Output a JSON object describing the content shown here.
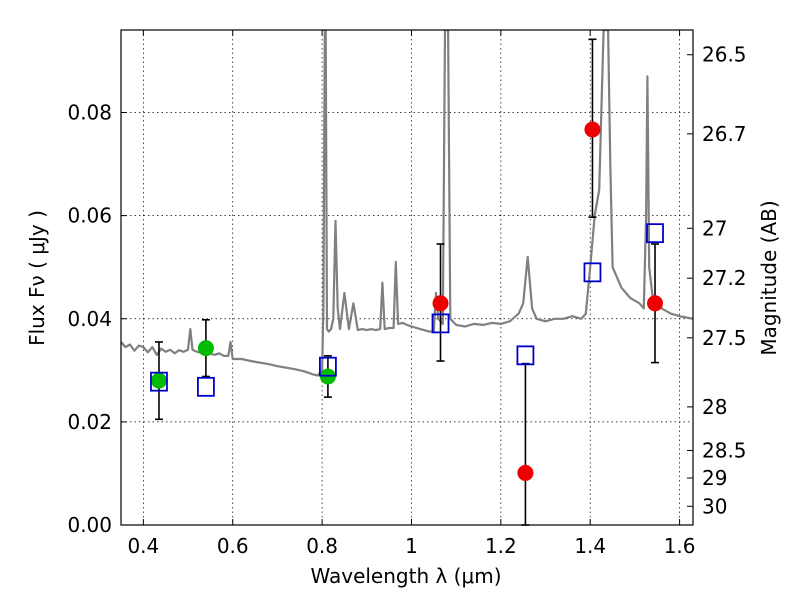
{
  "chart_data": {
    "type": "scatter",
    "xlabel": "Wavelength  λ (μm)",
    "ylabel": "Flux  Fν  ( μJy )",
    "ylabel_right": "Magnitude (AB)",
    "xlim": [
      0.35,
      1.63
    ],
    "ylim": [
      0.0,
      0.096
    ],
    "grid": true,
    "x_ticks": [
      {
        "value": 0.4,
        "label": "0.4"
      },
      {
        "value": 0.6,
        "label": "0.6"
      },
      {
        "value": 0.8,
        "label": "0.8"
      },
      {
        "value": 1.0,
        "label": "1"
      },
      {
        "value": 1.2,
        "label": "1.2"
      },
      {
        "value": 1.4,
        "label": "1.4"
      },
      {
        "value": 1.6,
        "label": "1.6"
      }
    ],
    "y_ticks": [
      {
        "value": 0.0,
        "label": "0.00"
      },
      {
        "value": 0.02,
        "label": "0.02"
      },
      {
        "value": 0.04,
        "label": "0.04"
      },
      {
        "value": 0.06,
        "label": "0.06"
      },
      {
        "value": 0.08,
        "label": "0.08"
      }
    ],
    "mag_ticks": [
      {
        "value": 26.5,
        "label": "26.5"
      },
      {
        "value": 26.7,
        "label": "26.7"
      },
      {
        "value": 27.0,
        "label": "27"
      },
      {
        "value": 27.2,
        "label": "27.2"
      },
      {
        "value": 27.5,
        "label": "27.5"
      },
      {
        "value": 28.0,
        "label": "28"
      },
      {
        "value": 28.5,
        "label": "28.5"
      },
      {
        "value": 29.0,
        "label": "29"
      },
      {
        "value": 30.0,
        "label": "30"
      }
    ],
    "colors": {
      "spectrum": "#808080",
      "green": "#00bb00",
      "red": "#ee0000",
      "model_box": "#0000cc",
      "errorbar": "#000000"
    },
    "series": [
      {
        "marker": "green-circle",
        "points": [
          {
            "x": 0.435,
            "y": 0.028,
            "err_lo": 0.0075,
            "err_hi": 0.0075
          },
          {
            "x": 0.54,
            "y": 0.0343,
            "err_lo": 0.0055,
            "err_hi": 0.0055
          },
          {
            "x": 0.813,
            "y": 0.0288,
            "err_lo": 0.004,
            "err_hi": 0.004
          }
        ]
      },
      {
        "marker": "red-circle",
        "points": [
          {
            "x": 1.065,
            "y": 0.043,
            "err_lo": 0.0112,
            "err_hi": 0.0115
          },
          {
            "x": 1.255,
            "y": 0.0101,
            "err_lo": 0.0101,
            "err_hi": 0.0212
          },
          {
            "x": 1.405,
            "y": 0.0767,
            "err_lo": 0.017,
            "err_hi": 0.0175
          },
          {
            "x": 1.545,
            "y": 0.043,
            "err_lo": 0.0115,
            "err_hi": 0.0115
          }
        ]
      },
      {
        "marker": "blue-open-square",
        "points": [
          {
            "x": 0.435,
            "y": 0.0278
          },
          {
            "x": 0.54,
            "y": 0.0268
          },
          {
            "x": 0.813,
            "y": 0.0307
          },
          {
            "x": 1.065,
            "y": 0.0391
          },
          {
            "x": 1.255,
            "y": 0.0329
          },
          {
            "x": 1.405,
            "y": 0.049
          },
          {
            "x": 1.545,
            "y": 0.0566
          }
        ]
      },
      {
        "marker": "gray-line",
        "points": [
          [
            0.35,
            0.0355
          ],
          [
            0.36,
            0.0345
          ],
          [
            0.37,
            0.035
          ],
          [
            0.38,
            0.0338
          ],
          [
            0.39,
            0.0348
          ],
          [
            0.4,
            0.0345
          ],
          [
            0.41,
            0.0335
          ],
          [
            0.42,
            0.0345
          ],
          [
            0.43,
            0.033
          ],
          [
            0.44,
            0.0342
          ],
          [
            0.45,
            0.0336
          ],
          [
            0.46,
            0.034
          ],
          [
            0.47,
            0.0333
          ],
          [
            0.48,
            0.0339
          ],
          [
            0.49,
            0.0336
          ],
          [
            0.5,
            0.034
          ],
          [
            0.505,
            0.038
          ],
          [
            0.51,
            0.034
          ],
          [
            0.52,
            0.0336
          ],
          [
            0.53,
            0.0334
          ],
          [
            0.54,
            0.0338
          ],
          [
            0.55,
            0.0332
          ],
          [
            0.56,
            0.033
          ],
          [
            0.57,
            0.0333
          ],
          [
            0.58,
            0.0328
          ],
          [
            0.59,
            0.0328
          ],
          [
            0.595,
            0.0355
          ],
          [
            0.6,
            0.0322
          ],
          [
            0.62,
            0.0322
          ],
          [
            0.64,
            0.0318
          ],
          [
            0.66,
            0.0315
          ],
          [
            0.68,
            0.0312
          ],
          [
            0.7,
            0.0308
          ],
          [
            0.72,
            0.0305
          ],
          [
            0.74,
            0.0302
          ],
          [
            0.76,
            0.0298
          ],
          [
            0.78,
            0.0292
          ],
          [
            0.79,
            0.029
          ],
          [
            0.8,
            0.03
          ],
          [
            0.803,
            0.042
          ],
          [
            0.806,
            0.096
          ],
          [
            0.808,
            0.096
          ],
          [
            0.811,
            0.038
          ],
          [
            0.815,
            0.0375
          ],
          [
            0.82,
            0.038
          ],
          [
            0.825,
            0.04
          ],
          [
            0.83,
            0.059
          ],
          [
            0.835,
            0.042
          ],
          [
            0.84,
            0.038
          ],
          [
            0.85,
            0.045
          ],
          [
            0.86,
            0.038
          ],
          [
            0.87,
            0.043
          ],
          [
            0.88,
            0.0378
          ],
          [
            0.89,
            0.038
          ],
          [
            0.9,
            0.0378
          ],
          [
            0.91,
            0.038
          ],
          [
            0.92,
            0.0378
          ],
          [
            0.93,
            0.038
          ],
          [
            0.935,
            0.047
          ],
          [
            0.94,
            0.038
          ],
          [
            0.95,
            0.0382
          ],
          [
            0.96,
            0.0382
          ],
          [
            0.965,
            0.051
          ],
          [
            0.97,
            0.039
          ],
          [
            0.98,
            0.0392
          ],
          [
            0.99,
            0.0388
          ],
          [
            1.0,
            0.0385
          ],
          [
            1.02,
            0.038
          ],
          [
            1.04,
            0.0375
          ],
          [
            1.05,
            0.0375
          ],
          [
            1.055,
            0.045
          ],
          [
            1.06,
            0.04
          ],
          [
            1.07,
            0.039
          ],
          [
            1.075,
            0.096
          ],
          [
            1.082,
            0.096
          ],
          [
            1.087,
            0.04
          ],
          [
            1.1,
            0.0388
          ],
          [
            1.12,
            0.0385
          ],
          [
            1.14,
            0.039
          ],
          [
            1.16,
            0.0388
          ],
          [
            1.18,
            0.0392
          ],
          [
            1.2,
            0.039
          ],
          [
            1.22,
            0.0395
          ],
          [
            1.24,
            0.041
          ],
          [
            1.25,
            0.043
          ],
          [
            1.26,
            0.052
          ],
          [
            1.27,
            0.042
          ],
          [
            1.28,
            0.04
          ],
          [
            1.3,
            0.0395
          ],
          [
            1.32,
            0.04
          ],
          [
            1.34,
            0.04
          ],
          [
            1.36,
            0.0405
          ],
          [
            1.38,
            0.04
          ],
          [
            1.39,
            0.041
          ],
          [
            1.4,
            0.05
          ],
          [
            1.41,
            0.06
          ],
          [
            1.42,
            0.065
          ],
          [
            1.43,
            0.096
          ],
          [
            1.44,
            0.096
          ],
          [
            1.445,
            0.07
          ],
          [
            1.45,
            0.05
          ],
          [
            1.47,
            0.046
          ],
          [
            1.49,
            0.044
          ],
          [
            1.51,
            0.043
          ],
          [
            1.52,
            0.042
          ],
          [
            1.525,
            0.06
          ],
          [
            1.528,
            0.087
          ],
          [
            1.532,
            0.05
          ],
          [
            1.54,
            0.044
          ],
          [
            1.56,
            0.042
          ],
          [
            1.58,
            0.041
          ],
          [
            1.6,
            0.0405
          ],
          [
            1.63,
            0.04
          ]
        ]
      }
    ]
  }
}
